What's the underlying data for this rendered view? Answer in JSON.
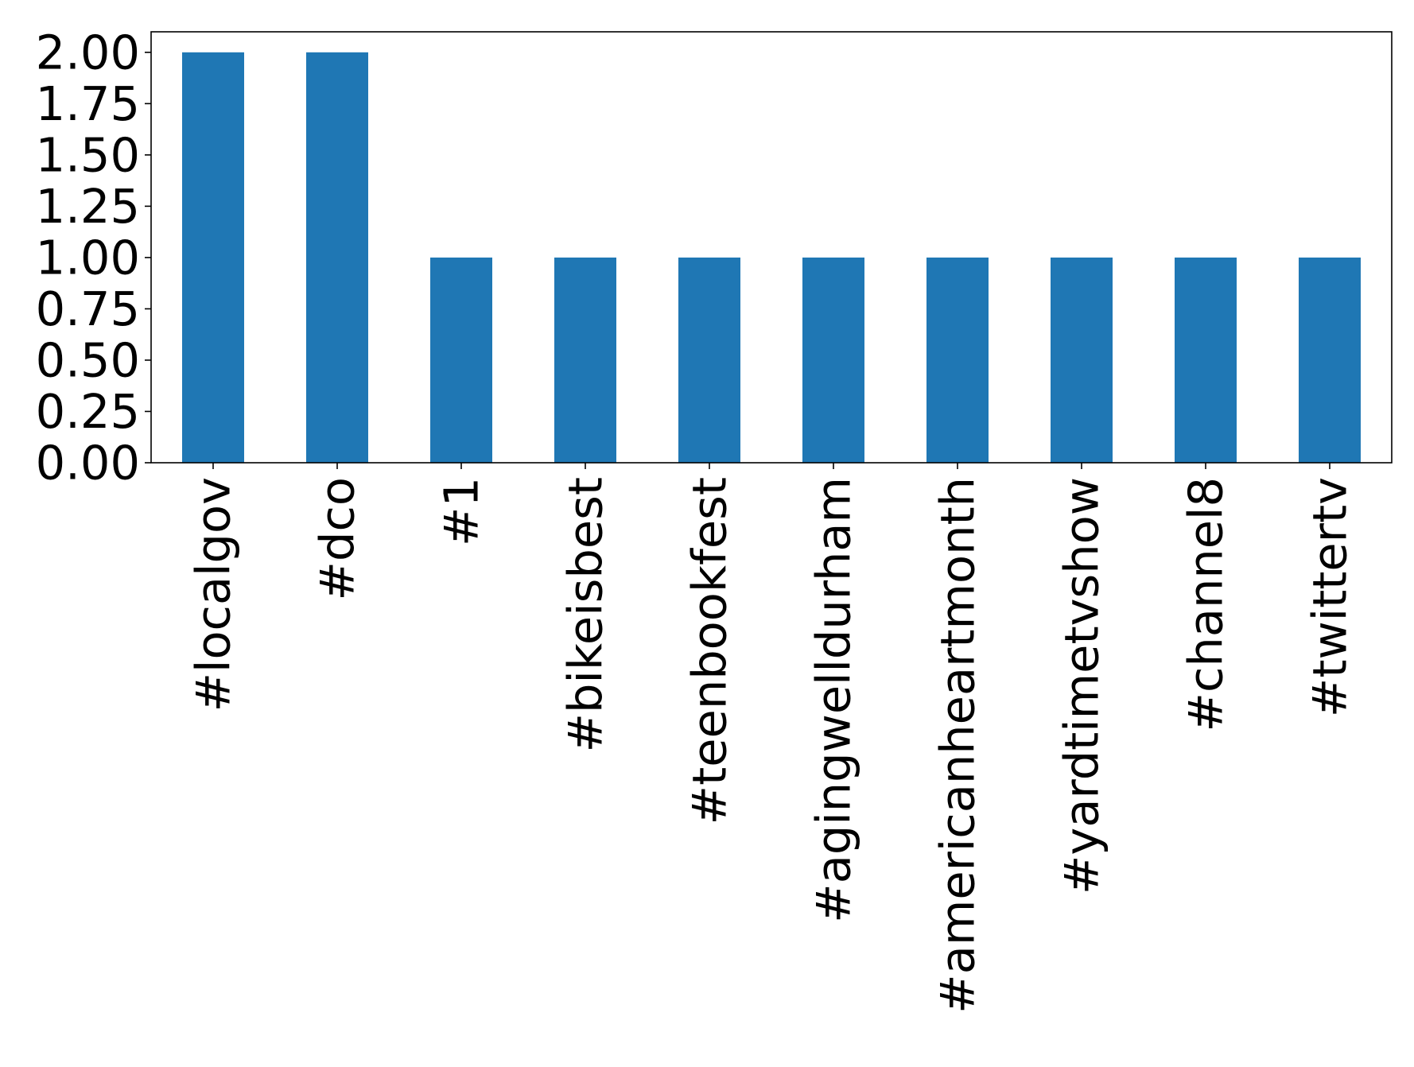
{
  "chart_data": {
    "type": "bar",
    "title": "",
    "xlabel": "",
    "ylabel": "",
    "categories": [
      "#localgov",
      "#dco",
      "#1",
      "#bikeisbest",
      "#teenbookfest",
      "#agingwelldurham",
      "#americanheartmonth",
      "#yardtimetvshow",
      "#channel8",
      "#twittertv"
    ],
    "values": [
      2,
      2,
      1,
      1,
      1,
      1,
      1,
      1,
      1,
      1
    ],
    "ylim": [
      0,
      2.1
    ],
    "yticks": [
      "0.00",
      "0.25",
      "0.50",
      "0.75",
      "1.00",
      "1.25",
      "1.50",
      "1.75",
      "2.00"
    ],
    "bar_color": "#1f77b4",
    "grid": false,
    "legend": "none"
  }
}
